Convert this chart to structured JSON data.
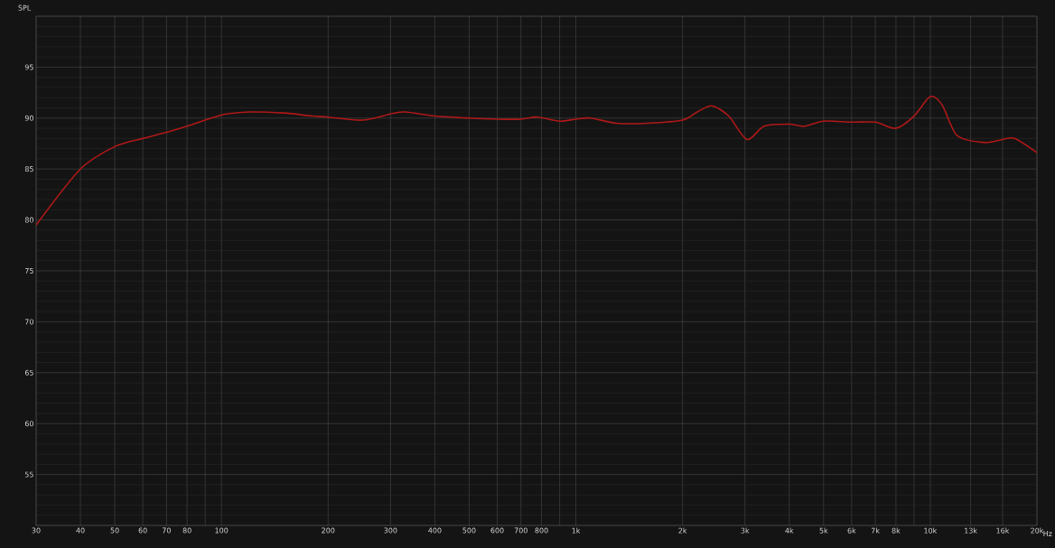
{
  "chart_data": {
    "type": "line",
    "ylabel": "SPL",
    "log": "x",
    "grid": true,
    "xlim": [
      30,
      20000
    ],
    "ylim": [
      50,
      100
    ],
    "xticks": [
      30,
      40,
      50,
      60,
      70,
      80,
      {
        "value": 90,
        "label": null
      },
      100,
      200,
      300,
      400,
      500,
      600,
      700,
      800,
      {
        "value": 900,
        "label": null
      },
      {
        "value": 1000,
        "label": "1k"
      },
      {
        "value": 2000,
        "label": "2k"
      },
      {
        "value": 3000,
        "label": "3k"
      },
      {
        "value": 4000,
        "label": "4k"
      },
      {
        "value": 5000,
        "label": "5k"
      },
      {
        "value": 6000,
        "label": "6k"
      },
      {
        "value": 7000,
        "label": "7k"
      },
      {
        "value": 8000,
        "label": "8k"
      },
      {
        "value": 9000,
        "label": null
      },
      {
        "value": 10000,
        "label": "10k"
      },
      {
        "value": 13000,
        "label": "13k"
      },
      {
        "value": 16000,
        "label": "16k"
      },
      {
        "value": 20000,
        "label": "20k"
      }
    ],
    "xlabel": "Hz",
    "yticks": [
      {
        "value": 50,
        "label": null
      },
      55,
      60,
      65,
      70,
      75,
      80,
      85,
      90,
      95,
      {
        "value": 100,
        "label": null
      }
    ],
    "series": [
      {
        "color": "#b01818",
        "x": [
          30,
          40,
          50,
          60,
          70,
          80,
          100,
          120,
          150,
          180,
          200,
          250,
          300,
          330,
          400,
          500,
          600,
          700,
          780,
          900,
          1000,
          1100,
          1300,
          1600,
          2000,
          2200,
          2420,
          2700,
          3040,
          3400,
          4000,
          4400,
          5000,
          6000,
          7000,
          8000,
          9000,
          10000,
          10800,
          11900,
          14200,
          16000,
          17300,
          20000
        ],
        "values": [
          79.5,
          85,
          87.2,
          88,
          88.6,
          89.2,
          90.3,
          90.6,
          90.5,
          90.2,
          90.1,
          89.8,
          90.4,
          90.6,
          90.2,
          90,
          89.9,
          89.9,
          90.1,
          89.7,
          89.9,
          90,
          89.5,
          89.5,
          89.8,
          90.6,
          91.2,
          90.2,
          87.9,
          89.2,
          89.4,
          89.2,
          89.7,
          89.6,
          89.6,
          89,
          90.2,
          92.1,
          91.3,
          88.3,
          87.6,
          87.9,
          88,
          86.6
        ]
      }
    ]
  }
}
